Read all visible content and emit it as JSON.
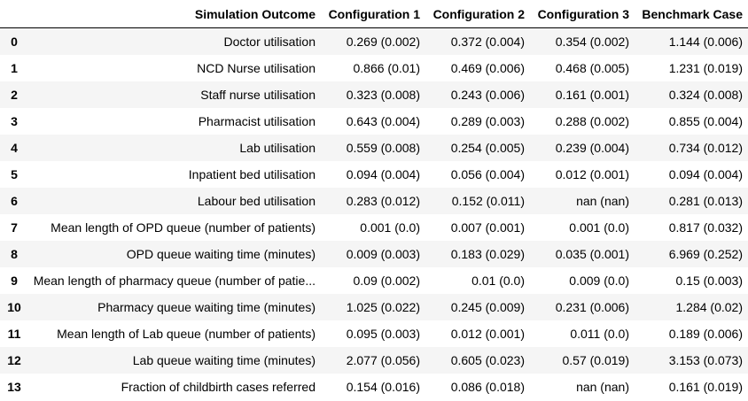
{
  "table": {
    "columns": [
      "",
      "Simulation Outcome",
      "Configuration 1",
      "Configuration 2",
      "Configuration 3",
      "Benchmark Case"
    ],
    "rows": [
      {
        "index": "0",
        "outcome": "Doctor utilisation",
        "cfg1": "0.269 (0.002)",
        "cfg2": "0.372 (0.004)",
        "cfg3": "0.354 (0.002)",
        "bench": "1.144 (0.006)"
      },
      {
        "index": "1",
        "outcome": "NCD Nurse utilisation",
        "cfg1": "0.866 (0.01)",
        "cfg2": "0.469 (0.006)",
        "cfg3": "0.468 (0.005)",
        "bench": "1.231 (0.019)"
      },
      {
        "index": "2",
        "outcome": "Staff nurse utilisation",
        "cfg1": "0.323 (0.008)",
        "cfg2": "0.243 (0.006)",
        "cfg3": "0.161 (0.001)",
        "bench": "0.324 (0.008)"
      },
      {
        "index": "3",
        "outcome": "Pharmacist utilisation",
        "cfg1": "0.643 (0.004)",
        "cfg2": "0.289 (0.003)",
        "cfg3": "0.288 (0.002)",
        "bench": "0.855 (0.004)"
      },
      {
        "index": "4",
        "outcome": "Lab utilisation",
        "cfg1": "0.559 (0.008)",
        "cfg2": "0.254 (0.005)",
        "cfg3": "0.239 (0.004)",
        "bench": "0.734 (0.012)"
      },
      {
        "index": "5",
        "outcome": "Inpatient bed utilisation",
        "cfg1": "0.094 (0.004)",
        "cfg2": "0.056 (0.004)",
        "cfg3": "0.012 (0.001)",
        "bench": "0.094 (0.004)"
      },
      {
        "index": "6",
        "outcome": "Labour bed utilisation",
        "cfg1": "0.283 (0.012)",
        "cfg2": "0.152 (0.011)",
        "cfg3": "nan (nan)",
        "bench": "0.281 (0.013)"
      },
      {
        "index": "7",
        "outcome": "Mean length of OPD queue (number of patients)",
        "cfg1": "0.001 (0.0)",
        "cfg2": "0.007 (0.001)",
        "cfg3": "0.001 (0.0)",
        "bench": "0.817 (0.032)"
      },
      {
        "index": "8",
        "outcome": "OPD queue waiting time (minutes)",
        "cfg1": "0.009 (0.003)",
        "cfg2": "0.183 (0.029)",
        "cfg3": "0.035 (0.001)",
        "bench": "6.969 (0.252)"
      },
      {
        "index": "9",
        "outcome": "Mean length of pharmacy queue (number of patie...",
        "cfg1": "0.09 (0.002)",
        "cfg2": "0.01 (0.0)",
        "cfg3": "0.009 (0.0)",
        "bench": "0.15 (0.003)"
      },
      {
        "index": "10",
        "outcome": "Pharmacy queue waiting time (minutes)",
        "cfg1": "1.025 (0.022)",
        "cfg2": "0.245 (0.009)",
        "cfg3": "0.231 (0.006)",
        "bench": "1.284 (0.02)"
      },
      {
        "index": "11",
        "outcome": "Mean length of Lab queue (number of patients)",
        "cfg1": "0.095 (0.003)",
        "cfg2": "0.012 (0.001)",
        "cfg3": "0.011 (0.0)",
        "bench": "0.189 (0.006)"
      },
      {
        "index": "12",
        "outcome": "Lab queue waiting time (minutes)",
        "cfg1": "2.077 (0.056)",
        "cfg2": "0.605 (0.023)",
        "cfg3": "0.57 (0.019)",
        "bench": "3.153 (0.073)"
      },
      {
        "index": "13",
        "outcome": "Fraction of childbirth cases referred",
        "cfg1": "0.154 (0.016)",
        "cfg2": "0.086 (0.018)",
        "cfg3": "nan (nan)",
        "bench": "0.161 (0.019)"
      }
    ]
  },
  "colors": {
    "striped_row": "#f5f5f5",
    "plain_row": "#ffffff",
    "header_rule": "#000000"
  }
}
